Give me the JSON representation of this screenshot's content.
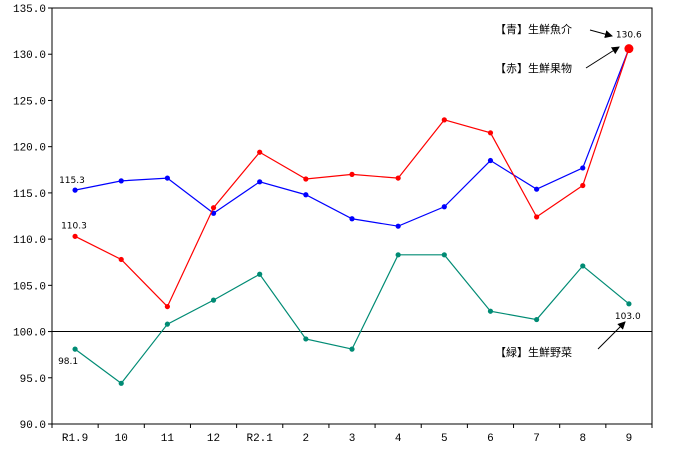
{
  "chart_data": {
    "type": "line",
    "categories": [
      "R1.9",
      "10",
      "11",
      "12",
      "R2.1",
      "2",
      "3",
      "4",
      "5",
      "6",
      "7",
      "8",
      "9"
    ],
    "ylim": [
      90.0,
      135.0
    ],
    "yticks": [
      "90.0",
      "95.0",
      "100.0",
      "105.0",
      "110.0",
      "115.0",
      "120.0",
      "125.0",
      "130.0",
      "135.0"
    ],
    "baseline": 100.0,
    "grid": false,
    "series": [
      {
        "key": "blue",
        "color": "#0000ff",
        "values": [
          115.3,
          116.3,
          116.6,
          112.8,
          116.2,
          114.8,
          112.2,
          111.4,
          113.5,
          118.5,
          115.4,
          117.7,
          130.6
        ]
      },
      {
        "key": "red",
        "color": "#ff0000",
        "values": [
          110.3,
          107.8,
          102.7,
          113.4,
          119.4,
          116.5,
          117.0,
          116.6,
          122.9,
          121.5,
          112.4,
          115.8,
          130.6
        ]
      },
      {
        "key": "green",
        "color": "#008b74",
        "values": [
          98.1,
          94.4,
          100.8,
          103.4,
          106.2,
          99.2,
          98.1,
          108.3,
          108.3,
          102.2,
          101.3,
          107.1,
          103.0
        ]
      }
    ],
    "data_labels": [
      {
        "series": "blue",
        "index": 0,
        "text": "115.3"
      },
      {
        "series": "red",
        "index": 0,
        "text": "110.3"
      },
      {
        "series": "green",
        "index": 0,
        "text": "98.1"
      },
      {
        "series": "red",
        "index": 12,
        "text": "130.6"
      },
      {
        "series": "green",
        "index": 12,
        "text": "103.0"
      }
    ],
    "annotations": [
      {
        "key": "fish",
        "text": "【青】生鮮魚介"
      },
      {
        "key": "fruit",
        "text": "【赤】生鮮果物"
      },
      {
        "key": "veg",
        "text": "【緑】生鮮野菜"
      }
    ]
  }
}
